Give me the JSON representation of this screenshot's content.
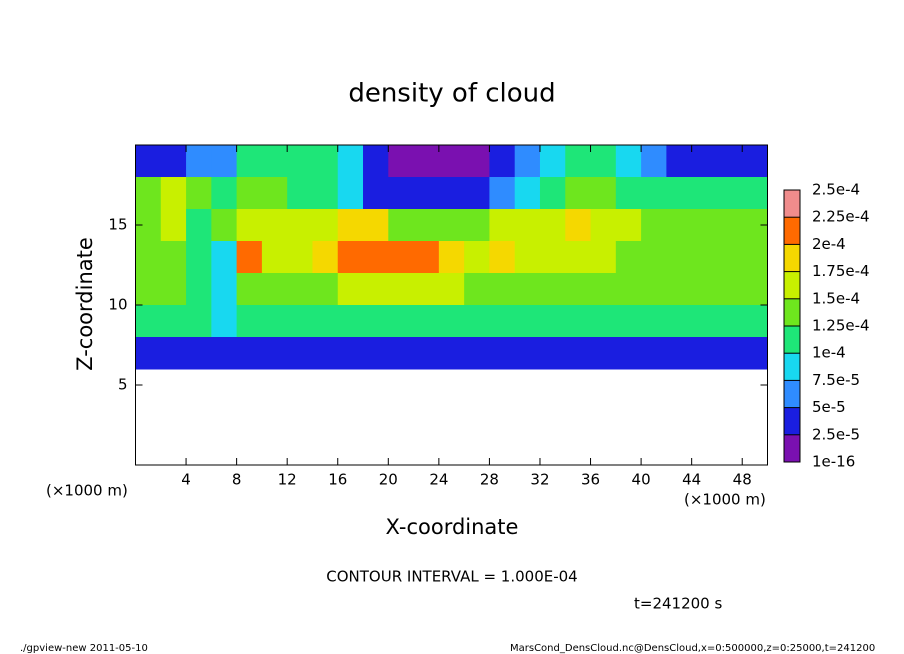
{
  "chart_data": {
    "type": "heatmap",
    "title": "density of cloud",
    "x_label": "X-coordinate",
    "y_label": "Z-coordinate",
    "x_unit_label": "(×1000 m)",
    "y_unit_label": "(×1000 m)",
    "contour_note": "CONTOUR INTERVAL = 1.000E-04",
    "time_label": "t=241200 s",
    "footer_left": "./gpview-new  2011-05-10",
    "footer_right": "MarsCond_DensCloud.nc@DensCloud,x=0:500000,z=0:25000,t=241200",
    "xlim": [
      0,
      50
    ],
    "ylim": [
      0,
      20
    ],
    "xticks": [
      4,
      8,
      12,
      16,
      20,
      24,
      28,
      32,
      36,
      40,
      44,
      48
    ],
    "yticks": [
      5,
      10,
      15
    ],
    "x": [
      1,
      3,
      5,
      7,
      9,
      11,
      13,
      15,
      17,
      19,
      21,
      23,
      25,
      27,
      29,
      31,
      33,
      35,
      37,
      39,
      41,
      43,
      45,
      47,
      49
    ],
    "y": [
      19,
      17,
      15,
      13,
      11,
      9,
      7
    ],
    "values": [
      [
        4e-05,
        4e-05,
        5e-05,
        6e-05,
        0.0001,
        0.00012,
        0.00011,
        0.00011,
        8e-05,
        3e-05,
        2e-05,
        2e-05,
        2e-05,
        2e-05,
        3e-05,
        6e-05,
        9e-05,
        0.00012,
        0.00011,
        8e-05,
        5e-05,
        4e-05,
        4e-05,
        4e-05,
        4e-05
      ],
      [
        0.00013,
        0.00015,
        0.00014,
        0.00011,
        0.00013,
        0.00013,
        0.00012,
        0.00012,
        9e-05,
        4e-05,
        3e-05,
        3e-05,
        3e-05,
        3e-05,
        5e-05,
        9e-05,
        0.00012,
        0.00013,
        0.00013,
        0.00012,
        0.00011,
        0.0001,
        0.0001,
        0.0001,
        0.0001
      ],
      [
        0.00014,
        0.00016,
        0.00012,
        0.00013,
        0.00017,
        0.00016,
        0.00016,
        0.00016,
        0.00019,
        0.00018,
        0.00014,
        0.00013,
        0.00014,
        0.00014,
        0.00015,
        0.00015,
        0.00017,
        0.00018,
        0.00017,
        0.00015,
        0.00013,
        0.00013,
        0.00013,
        0.00013,
        0.00013
      ],
      [
        0.00014,
        0.00014,
        0.0001,
        9e-05,
        0.0002,
        0.00016,
        0.00016,
        0.00018,
        0.00022,
        0.00022,
        0.00022,
        0.00021,
        0.00018,
        0.00017,
        0.00018,
        0.00017,
        0.00016,
        0.00015,
        0.00015,
        0.00014,
        0.00014,
        0.00014,
        0.00014,
        0.00014,
        0.00014
      ],
      [
        0.00013,
        0.00013,
        0.00011,
        9e-05,
        0.00013,
        0.00014,
        0.00014,
        0.00013,
        0.00015,
        0.00016,
        0.00016,
        0.00015,
        0.00015,
        0.00014,
        0.00014,
        0.00014,
        0.00014,
        0.00013,
        0.00013,
        0.00013,
        0.00013,
        0.00013,
        0.00013,
        0.00013,
        0.00013
      ],
      [
        0.00012,
        0.00012,
        0.0001,
        9e-05,
        0.00011,
        0.00011,
        0.00011,
        0.00011,
        0.00011,
        0.00011,
        0.00011,
        0.00011,
        0.00011,
        0.00011,
        0.00011,
        0.00011,
        0.00011,
        0.00011,
        0.00011,
        0.00011,
        0.00011,
        0.00011,
        0.00011,
        0.00011,
        0.00011
      ],
      [
        4e-05,
        4e-05,
        3e-05,
        3e-05,
        4e-05,
        4e-05,
        4e-05,
        4e-05,
        3e-05,
        4e-05,
        4e-05,
        4e-05,
        4e-05,
        4e-05,
        4e-05,
        4e-05,
        4e-05,
        4e-05,
        4e-05,
        4e-05,
        4e-05,
        4e-05,
        4e-05,
        4e-05,
        4e-05
      ]
    ],
    "colorbar_ticks": [
      {
        "value": 1e-16,
        "label": "1e-16"
      },
      {
        "value": 2.5e-05,
        "label": "2.5e-5"
      },
      {
        "value": 5e-05,
        "label": "5e-5"
      },
      {
        "value": 7.5e-05,
        "label": "7.5e-5"
      },
      {
        "value": 0.0001,
        "label": "1e-4"
      },
      {
        "value": 0.000125,
        "label": "1.25e-4"
      },
      {
        "value": 0.00015,
        "label": "1.5e-4"
      },
      {
        "value": 0.000175,
        "label": "1.75e-4"
      },
      {
        "value": 0.0002,
        "label": "2e-4"
      },
      {
        "value": 0.000225,
        "label": "2.25e-4"
      },
      {
        "value": 0.00025,
        "label": "2.5e-4"
      }
    ],
    "colors": [
      "#7a10b0",
      "#1a1ee0",
      "#2f8cff",
      "#18d8f0",
      "#1ee678",
      "#6ee61e",
      "#c8f000",
      "#f5d800",
      "#ff6a00",
      "#f08c8c"
    ]
  }
}
